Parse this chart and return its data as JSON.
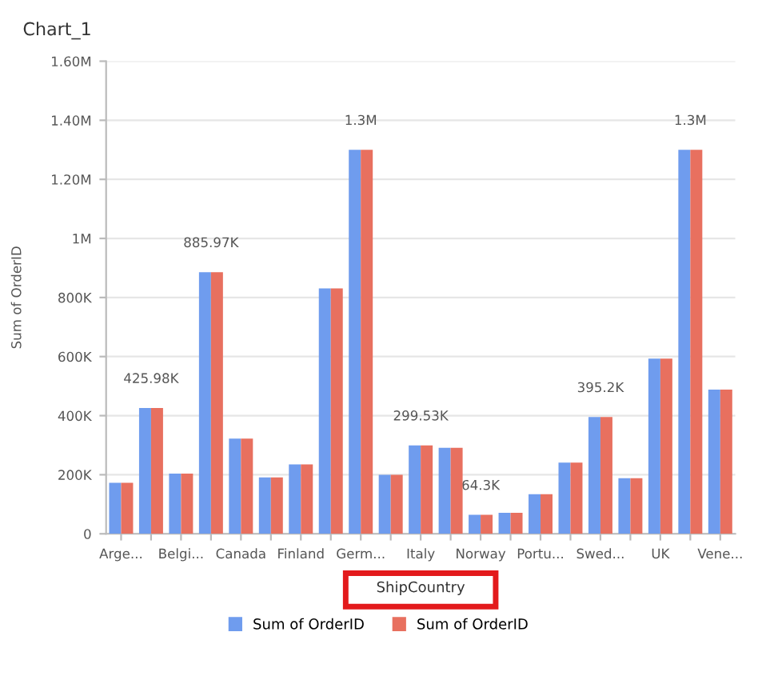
{
  "chart_data": {
    "type": "bar",
    "title": "Chart_1",
    "xlabel": "ShipCountry",
    "ylabel": "Sum of OrderID",
    "categories": [
      "Arge...",
      null,
      "Belgi...",
      null,
      "Canada",
      null,
      "Finland",
      null,
      "Germ...",
      null,
      "Italy",
      null,
      "Norway",
      null,
      "Portu...",
      null,
      "Swed...",
      null,
      "UK",
      null,
      "Vene..."
    ],
    "series": [
      {
        "name": "Sum of OrderID",
        "color": "#6f9cee",
        "values": [
          173000,
          425980,
          204000,
          885970,
          322000,
          191000,
          235000,
          831000,
          1300000,
          200000,
          299530,
          291000,
          64300,
          71000,
          134000,
          241000,
          395200,
          188000,
          593000,
          1300000,
          488000
        ],
        "value_labels": [
          null,
          "425.98K",
          null,
          "885.97K",
          null,
          null,
          null,
          null,
          "1.3M",
          null,
          "299.53K",
          null,
          "64.3K",
          null,
          null,
          null,
          "395.2K",
          null,
          null,
          "1.3M",
          null
        ]
      },
      {
        "name": "Sum of OrderID",
        "color": "#e8705f",
        "values": [
          173000,
          425980,
          204000,
          885970,
          322000,
          191000,
          235000,
          831000,
          1300000,
          200000,
          299530,
          291000,
          64300,
          71000,
          134000,
          241000,
          395200,
          188000,
          593000,
          1300000,
          488000
        ]
      }
    ],
    "ylim": [
      0,
      1600000
    ],
    "yticks": [
      {
        "value": 0,
        "label": "0"
      },
      {
        "value": 200000,
        "label": "200K"
      },
      {
        "value": 400000,
        "label": "400K"
      },
      {
        "value": 600000,
        "label": "600K"
      },
      {
        "value": 800000,
        "label": "800K"
      },
      {
        "value": 1000000,
        "label": "1M"
      },
      {
        "value": 1200000,
        "label": "1.20M"
      },
      {
        "value": 1400000,
        "label": "1.40M"
      },
      {
        "value": 1600000,
        "label": "1.60M"
      }
    ],
    "grid": "y",
    "legend": "bottom"
  }
}
